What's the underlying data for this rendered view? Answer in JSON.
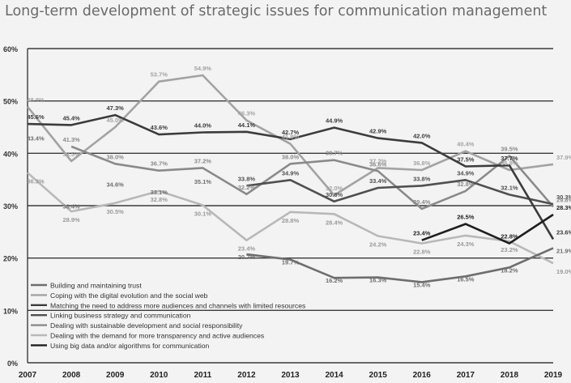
{
  "chart_data": {
    "type": "line",
    "title": "Long-term development of strategic issues for communication management",
    "x": [
      "2007",
      "2008",
      "2009",
      "2010",
      "2011",
      "2012",
      "2013",
      "2014",
      "2015",
      "2016",
      "2017",
      "2018",
      "2019"
    ],
    "ylim": [
      0,
      60
    ],
    "yticks": [
      "0%",
      "10%",
      "20%",
      "30%",
      "40%",
      "50%",
      "60%"
    ],
    "grid": true,
    "legend_position": "bottom-left (inside plot)",
    "series": [
      {
        "name": "Building and maintaining trust",
        "color": "#6e6e6e",
        "values": [
          43.4,
          null,
          null,
          null,
          null,
          20.7,
          19.7,
          16.2,
          16.3,
          15.4,
          16.5,
          18.2,
          21.9
        ],
        "labels": [
          "43.4%",
          null,
          null,
          null,
          null,
          "20.7%",
          "19.7%",
          "16.2%",
          "16.3%",
          "15.4%",
          "16.5%",
          "18.2%",
          "21.9%"
        ]
      },
      {
        "name": "Coping with the digital evolution and the social web",
        "color": "#a3a3a3",
        "values": [
          48.9,
          38.5,
          45.0,
          53.7,
          54.9,
          46.3,
          41.8,
          32.0,
          37.2,
          36.8,
          40.4,
          36.8,
          37.9
        ],
        "labels": [
          "48.9%",
          "38.5%",
          "45.0%",
          "53.7%",
          "54.9%",
          "46.3%",
          "41.8%",
          "32.0%",
          "37.2%",
          "36.8%",
          "40.4%",
          "36.8%",
          "37.9%"
        ]
      },
      {
        "name": "Matching the need to address more audiences and channels with limited resources",
        "color": "#3c3c3c",
        "values": [
          45.6,
          45.4,
          47.3,
          43.6,
          44.0,
          44.1,
          42.7,
          44.9,
          42.9,
          42.0,
          37.5,
          37.7,
          23.6
        ],
        "labels": [
          "45.6%",
          "45.4%",
          "47.3%",
          "43.6%",
          "44.0%",
          "44.1%",
          "42.7%",
          "44.9%",
          "42.9%",
          "42.0%",
          "37.5%",
          "37.7%",
          "23.6%"
        ]
      },
      {
        "name": "Linking business strategy and communication",
        "color": "#505050",
        "values": [
          null,
          null,
          null,
          null,
          null,
          33.8,
          34.9,
          30.8,
          33.4,
          33.8,
          34.9,
          32.1,
          30.3
        ],
        "labels": [
          null,
          null,
          null,
          null,
          null,
          "33.8%",
          "34.9%",
          "30.8%",
          "33.4%",
          "33.8%",
          "34.9%",
          "32.1%",
          "30.3%"
        ]
      },
      {
        "name": "Dealing with sustainable development and social responsibility",
        "color": "#8a8a8a",
        "values": [
          null,
          41.3,
          38.0,
          36.7,
          37.2,
          32.2,
          38.0,
          38.7,
          36.6,
          29.4,
          32.8,
          39.5,
          29.8
        ],
        "labels": [
          null,
          "41.3%",
          "38.0%",
          "36.7%",
          "37.2%",
          "32.2%",
          "38.0%",
          "38.7%",
          "36.6%",
          "29.4%",
          "32.8%",
          "39.5%",
          "29.8%"
        ]
      },
      {
        "name": "Dealing with the demand for more transparency and active audiences",
        "color": "#b8b8b8",
        "values": [
          36.3,
          28.9,
          30.5,
          32.8,
          30.1,
          23.4,
          28.8,
          28.4,
          24.2,
          22.8,
          24.3,
          23.2,
          19.0
        ],
        "labels": [
          "36.3%",
          "28.9%",
          "30.5%",
          "32.8%",
          "30.1%",
          "23.4%",
          "28.8%",
          "28.4%",
          "24.2%",
          "22.8%",
          "24.3%",
          "23.2%",
          "19.0%"
        ]
      },
      {
        "name": "Using big data and/or algorithms for communication",
        "color": "#1f1f1f",
        "values": [
          null,
          null,
          null,
          null,
          null,
          null,
          null,
          null,
          null,
          23.4,
          26.5,
          22.8,
          28.3
        ],
        "labels": [
          null,
          null,
          null,
          null,
          null,
          null,
          null,
          null,
          null,
          "23.4%",
          "26.5%",
          "22.8%",
          "28.3%"
        ]
      }
    ],
    "extra_labels": [
      {
        "series": 0,
        "year": "2008",
        "value": 30.4,
        "text": "30.4%"
      },
      {
        "series": 0,
        "year": "2009",
        "value": 34.6,
        "text": "34.6%"
      },
      {
        "series": 0,
        "year": "2010",
        "value": 33.1,
        "text": "33.1%"
      },
      {
        "series": 0,
        "year": "2011",
        "value": 35.1,
        "text": "35.1%"
      }
    ]
  }
}
